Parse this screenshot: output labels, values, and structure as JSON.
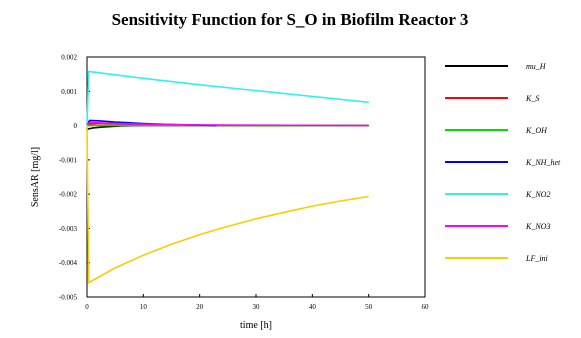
{
  "chart_data": {
    "type": "line",
    "title": "Sensitivity Function for S_O in Biofilm Reactor 3",
    "xlabel": "time [h]",
    "ylabel": "SensAR [mg/l]",
    "xlim": [
      0,
      60
    ],
    "ylim": [
      -0.005,
      0.002
    ],
    "x_ticks": [
      "0",
      "10",
      "20",
      "30",
      "40",
      "50",
      "60"
    ],
    "y_ticks": [
      "0.002",
      "0.001",
      "0",
      "-0.001",
      "-0.002",
      "-0.003",
      "-0.004",
      "-0.005"
    ],
    "grid": false,
    "legend_position": "right",
    "series": [
      {
        "name": "mu_H",
        "color": "#000000",
        "x": [
          0,
          0.2,
          1,
          3,
          6,
          10,
          50
        ],
        "y": [
          -0.00012,
          -0.0001,
          -7e-05,
          -4e-05,
          -1e-05,
          0.0,
          0.0
        ]
      },
      {
        "name": "K_S",
        "color": "#ff0000",
        "x": [
          0,
          0.5,
          2,
          5,
          8,
          12,
          50
        ],
        "y": [
          0.0,
          4e-05,
          6e-05,
          5e-05,
          3e-05,
          1e-05,
          0.0
        ]
      },
      {
        "name": "K_OH",
        "color": "#00dd00",
        "x": [
          0,
          50
        ],
        "y": [
          0.0,
          0.0
        ]
      },
      {
        "name": "K_NH_het",
        "color": "#0000ff",
        "x": [
          0,
          0.5,
          2,
          5,
          10,
          15,
          23
        ],
        "y": [
          5e-05,
          0.00015,
          0.00014,
          0.0001,
          6e-05,
          3e-05,
          0.0
        ]
      },
      {
        "name": "K_NO2",
        "color": "#33f0f0",
        "x": [
          0,
          0.3,
          5,
          10,
          20,
          30,
          40,
          50
        ],
        "y": [
          0.0,
          0.00158,
          0.00148,
          0.00138,
          0.00119,
          0.00102,
          0.00085,
          0.00068
        ]
      },
      {
        "name": "K_NO3",
        "color": "#ff00ff",
        "x": [
          0,
          0.5,
          2,
          5,
          10,
          20,
          50
        ],
        "y": [
          3e-05,
          9e-05,
          8e-05,
          6e-05,
          4e-05,
          2e-05,
          0.0
        ]
      },
      {
        "name": "LF_ini",
        "color": "#ffcc00",
        "x": [
          0,
          0.3,
          5,
          10,
          15,
          20,
          25,
          30,
          35,
          40,
          45,
          50
        ],
        "y": [
          0.0,
          -0.00458,
          -0.00415,
          -0.00378,
          -0.00346,
          -0.00318,
          -0.00294,
          -0.00272,
          -0.00253,
          -0.00235,
          -0.0022,
          -0.00207
        ]
      }
    ]
  }
}
